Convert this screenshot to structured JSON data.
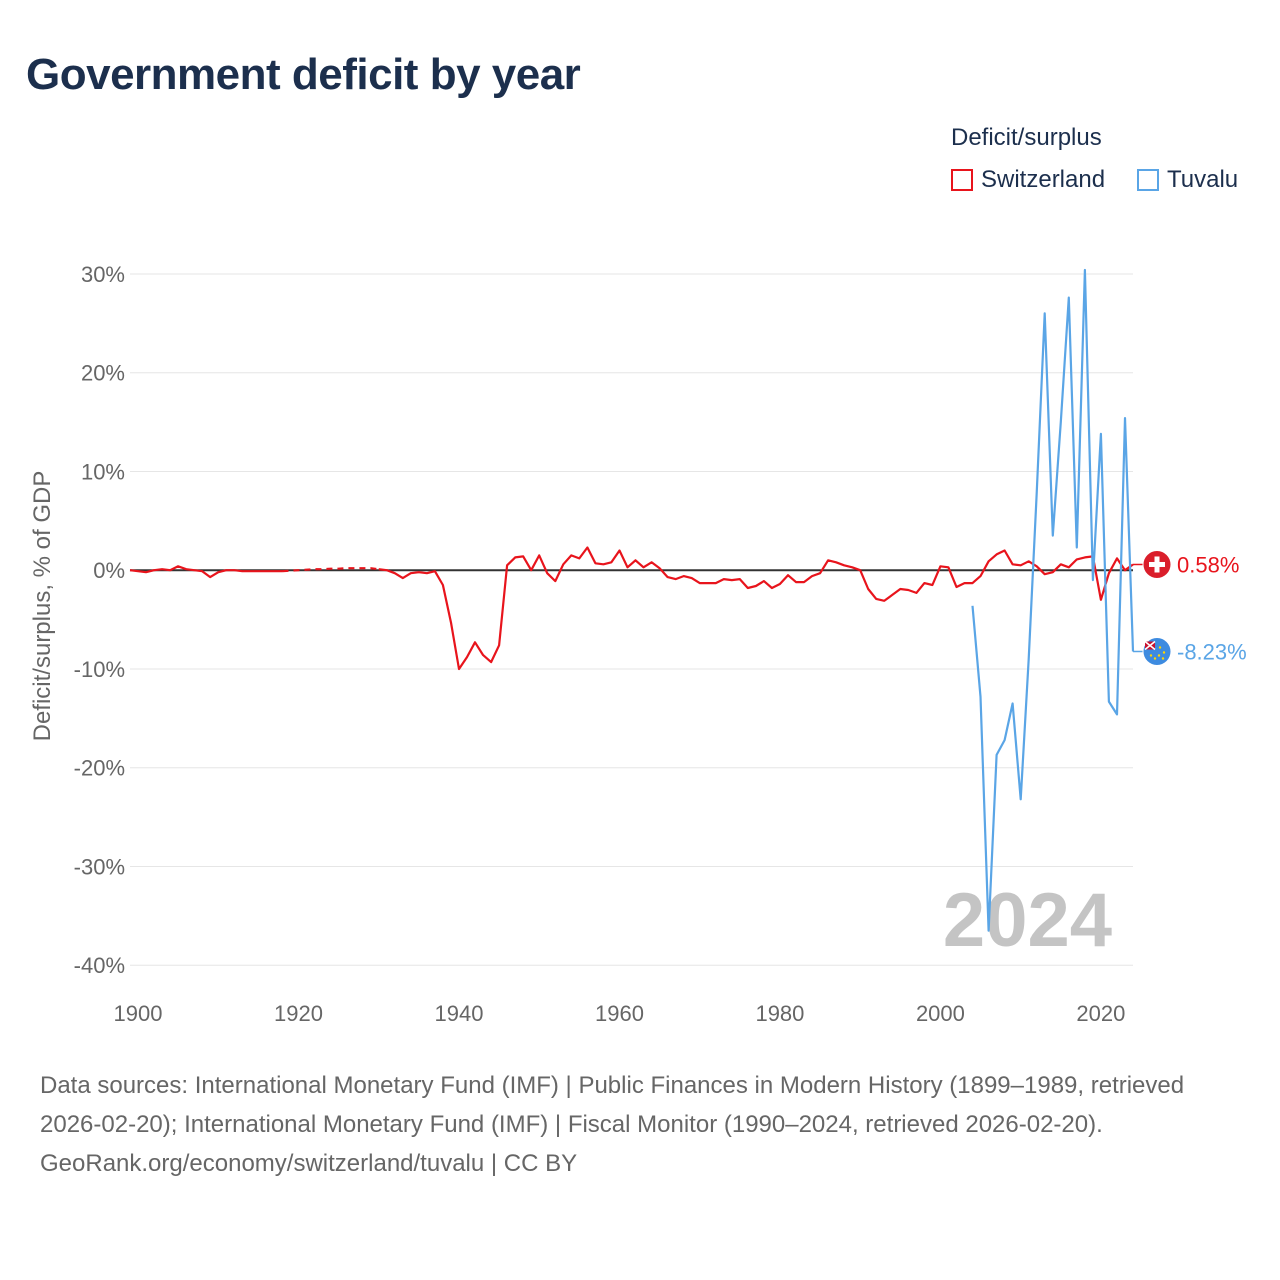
{
  "chart_data": {
    "type": "line",
    "title": "Government deficit by year",
    "ylabel": "Deficit/surplus, % of GDP",
    "xlabel": "",
    "xlim": [
      1899,
      2024
    ],
    "ylim": [
      -42,
      30.5
    ],
    "x_ticks": [
      1900,
      1920,
      1940,
      1960,
      1980,
      2000,
      2020
    ],
    "x_tick_labels": [
      "1900",
      "1920",
      "1940",
      "1960",
      "1980",
      "2000",
      "2020"
    ],
    "y_ticks": [
      30,
      20,
      10,
      0,
      -10,
      -20,
      -30,
      -40
    ],
    "y_tick_labels": [
      "30%",
      "20%",
      "10%",
      "0%",
      "-10%",
      "-20%",
      "-30%",
      "-40%"
    ],
    "year_watermark": "2024",
    "legend": {
      "title": "Deficit/surplus",
      "placement": "top-right",
      "entries": [
        "Switzerland",
        "Tuvalu"
      ]
    },
    "series": [
      {
        "name": "Switzerland",
        "color": "#e8141c",
        "end_label": "0.58%",
        "end_icon": "swiss-flag-icon",
        "dashed_ranges": [
          [
            1918,
            1930
          ]
        ],
        "points": [
          [
            1899,
            0
          ],
          [
            1900,
            -0.1
          ],
          [
            1901,
            -0.2
          ],
          [
            1902,
            0
          ],
          [
            1903,
            0.1
          ],
          [
            1904,
            0
          ],
          [
            1905,
            0.4
          ],
          [
            1906,
            0.1
          ],
          [
            1907,
            0
          ],
          [
            1908,
            -0.1
          ],
          [
            1909,
            -0.7
          ],
          [
            1910,
            -0.2
          ],
          [
            1911,
            0
          ],
          [
            1912,
            0
          ],
          [
            1913,
            -0.1
          ],
          [
            1914,
            -0.1
          ],
          [
            1915,
            -0.1
          ],
          [
            1916,
            -0.1
          ],
          [
            1917,
            -0.1
          ],
          [
            1918,
            -0.1
          ],
          [
            1919,
            -0.05
          ],
          [
            1920,
            0
          ],
          [
            1921,
            0.05
          ],
          [
            1922,
            0.1
          ],
          [
            1923,
            0.1
          ],
          [
            1924,
            0.15
          ],
          [
            1925,
            0.15
          ],
          [
            1926,
            0.2
          ],
          [
            1927,
            0.2
          ],
          [
            1928,
            0.2
          ],
          [
            1929,
            0.2
          ],
          [
            1930,
            0.1
          ],
          [
            1931,
            0
          ],
          [
            1932,
            -0.3
          ],
          [
            1933,
            -0.8
          ],
          [
            1934,
            -0.3
          ],
          [
            1935,
            -0.2
          ],
          [
            1936,
            -0.3
          ],
          [
            1937,
            -0.1
          ],
          [
            1938,
            -1.5
          ],
          [
            1939,
            -5.3
          ],
          [
            1940,
            -10
          ],
          [
            1941,
            -8.8
          ],
          [
            1942,
            -7.3
          ],
          [
            1943,
            -8.6
          ],
          [
            1944,
            -9.3
          ],
          [
            1945,
            -7.6
          ],
          [
            1946,
            0.5
          ],
          [
            1947,
            1.3
          ],
          [
            1948,
            1.4
          ],
          [
            1949,
            0
          ],
          [
            1950,
            1.5
          ],
          [
            1951,
            -0.3
          ],
          [
            1952,
            -1.1
          ],
          [
            1953,
            0.6
          ],
          [
            1954,
            1.5
          ],
          [
            1955,
            1.2
          ],
          [
            1956,
            2.3
          ],
          [
            1957,
            0.7
          ],
          [
            1958,
            0.6
          ],
          [
            1959,
            0.8
          ],
          [
            1960,
            2
          ],
          [
            1961,
            0.3
          ],
          [
            1962,
            1
          ],
          [
            1963,
            0.3
          ],
          [
            1964,
            0.8
          ],
          [
            1965,
            0.2
          ],
          [
            1966,
            -0.7
          ],
          [
            1967,
            -0.9
          ],
          [
            1968,
            -0.6
          ],
          [
            1969,
            -0.8
          ],
          [
            1970,
            -1.3
          ],
          [
            1971,
            -1.3
          ],
          [
            1972,
            -1.3
          ],
          [
            1973,
            -0.9
          ],
          [
            1974,
            -1
          ],
          [
            1975,
            -0.9
          ],
          [
            1976,
            -1.8
          ],
          [
            1977,
            -1.6
          ],
          [
            1978,
            -1.1
          ],
          [
            1979,
            -1.8
          ],
          [
            1980,
            -1.4
          ],
          [
            1981,
            -0.5
          ],
          [
            1982,
            -1.2
          ],
          [
            1983,
            -1.2
          ],
          [
            1984,
            -0.6
          ],
          [
            1985,
            -0.3
          ],
          [
            1986,
            1
          ],
          [
            1987,
            0.8
          ],
          [
            1988,
            0.5
          ],
          [
            1989,
            0.3
          ],
          [
            1990,
            0
          ],
          [
            1991,
            -1.9
          ],
          [
            1992,
            -2.9
          ],
          [
            1993,
            -3.1
          ],
          [
            1994,
            -2.5
          ],
          [
            1995,
            -1.9
          ],
          [
            1996,
            -2
          ],
          [
            1997,
            -2.3
          ],
          [
            1998,
            -1.3
          ],
          [
            1999,
            -1.5
          ],
          [
            2000,
            0.4
          ],
          [
            2001,
            0.3
          ],
          [
            2002,
            -1.7
          ],
          [
            2003,
            -1.3
          ],
          [
            2004,
            -1.3
          ],
          [
            2005,
            -0.6
          ],
          [
            2006,
            0.9
          ],
          [
            2007,
            1.6
          ],
          [
            2008,
            2
          ],
          [
            2009,
            0.6
          ],
          [
            2010,
            0.5
          ],
          [
            2011,
            0.9
          ],
          [
            2012,
            0.4
          ],
          [
            2013,
            -0.4
          ],
          [
            2014,
            -0.2
          ],
          [
            2015,
            0.6
          ],
          [
            2016,
            0.3
          ],
          [
            2017,
            1.1
          ],
          [
            2018,
            1.3
          ],
          [
            2019,
            1.4
          ],
          [
            2020,
            -3
          ],
          [
            2021,
            -0.3
          ],
          [
            2022,
            1.2
          ],
          [
            2023,
            0
          ],
          [
            2024,
            0.58
          ]
        ]
      },
      {
        "name": "Tuvalu",
        "color": "#5aa5e6",
        "end_label": "-8.23%",
        "end_icon": "tuvalu-flag-icon",
        "dashed_ranges": [],
        "points": [
          [
            2004,
            -3.6
          ],
          [
            2005,
            -12.8
          ],
          [
            2006,
            -36.5
          ],
          [
            2007,
            -18.7
          ],
          [
            2008,
            -17.2
          ],
          [
            2009,
            -13.5
          ],
          [
            2010,
            -23.2
          ],
          [
            2011,
            -9
          ],
          [
            2012,
            7.8
          ],
          [
            2013,
            26
          ],
          [
            2014,
            3.5
          ],
          [
            2015,
            15
          ],
          [
            2016,
            27.6
          ],
          [
            2017,
            2.3
          ],
          [
            2018,
            30.4
          ],
          [
            2019,
            -1
          ],
          [
            2020,
            13.8
          ],
          [
            2021,
            -13.3
          ],
          [
            2022,
            -14.6
          ],
          [
            2023,
            15.4
          ],
          [
            2024,
            -8.23
          ]
        ]
      }
    ]
  },
  "footer": {
    "sources": "Data sources: International Monetary Fund (IMF) | Public Finances in Modern History (1899–1989, retrieved 2026-02-20); International Monetary Fund (IMF) | Fiscal Monitor (1990–2024, retrieved 2026-02-20).",
    "credit": "GeoRank.org/economy/switzerland/tuvalu | CC BY"
  }
}
